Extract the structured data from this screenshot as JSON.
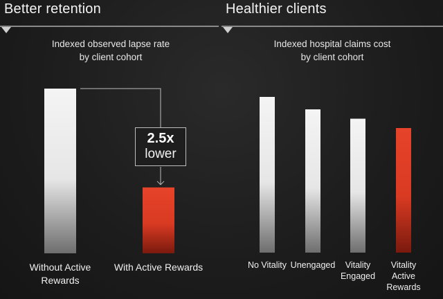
{
  "chart_data": [
    {
      "type": "bar",
      "panel_title": "Better retention",
      "title": "Indexed observed lapse rate",
      "title_line2": "by client cohort",
      "categories": [
        "Without Active Rewards",
        "With Active Rewards"
      ],
      "category_lines": [
        [
          "Without Active",
          "Rewards"
        ],
        [
          "With Active Rewards"
        ]
      ],
      "values": [
        2.5,
        1.0
      ],
      "colors": [
        "#e6e6e6",
        "#d93a22"
      ],
      "ylim": [
        0,
        2.6
      ],
      "annotation": {
        "value": "2.5x",
        "text": "lower"
      },
      "grid": false
    },
    {
      "type": "bar",
      "panel_title": "Healthier clients",
      "title": "Indexed hospital claims cost",
      "title_line2": "by client cohort",
      "categories": [
        "No Vitality",
        "Unengaged",
        "Vitality Engaged",
        "Vitality Active Rewards"
      ],
      "category_lines": [
        [
          "No Vitality"
        ],
        [
          "Unengaged"
        ],
        [
          "Vitality",
          "Engaged"
        ],
        [
          "Vitality",
          "Active",
          "Rewards"
        ]
      ],
      "values": [
        100,
        92,
        86,
        80
      ],
      "colors": [
        "#e6e6e6",
        "#e6e6e6",
        "#e6e6e6",
        "#d93a22"
      ],
      "ylim": [
        0,
        105
      ],
      "grid": false
    }
  ]
}
